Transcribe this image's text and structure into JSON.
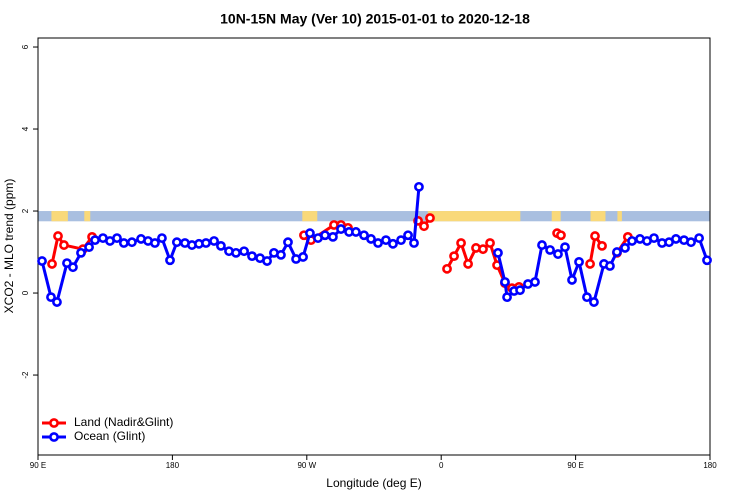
{
  "chart_data": {
    "type": "line",
    "title": "10N-15N May (Ver 10)   2015-01-01 to 2020-12-18",
    "xlabel": "Longitude (deg E)",
    "ylabel": "XCO2 - MLO trend (ppm)",
    "xlim": [
      90,
      540
    ],
    "ylim": [
      -3.95,
      6.22
    ],
    "xticks": [
      {
        "value": 90,
        "label": "90 E"
      },
      {
        "value": 180,
        "label": "180"
      },
      {
        "value": 270,
        "label": "90 W"
      },
      {
        "value": 360,
        "label": "0"
      },
      {
        "value": 450,
        "label": "90 E"
      },
      {
        "value": 540,
        "label": "180"
      }
    ],
    "yticks": [
      -2,
      0,
      2,
      4,
      6
    ],
    "mask_band": {
      "ylim": [
        1.75,
        2.0
      ],
      "color": "#a9bfe0",
      "land_color": "#f9d97a",
      "land": [
        [
          99,
          110
        ],
        [
          121,
          125
        ],
        [
          267,
          277
        ],
        [
          351,
          413
        ],
        [
          434,
          440
        ],
        [
          460,
          470
        ],
        [
          478,
          481
        ]
      ]
    },
    "legend": "bottom-left",
    "series": [
      {
        "name": "Land (Nadir&Glint)",
        "color": "#ff0000",
        "x": [
          99.4,
          103.4,
          107.4,
          120.1,
          126.2,
          200,
          268.1,
          272.8,
          288.2,
          292.9,
          297.6,
          320,
          344.5,
          348.5,
          352.5,
          358,
          363.9,
          368.6,
          373.3,
          378,
          383.3,
          388,
          392.7,
          397.4,
          402.7,
          407.4,
          412.1,
          425,
          437.6,
          440.2,
          450,
          459.7,
          463,
          467.7,
          472,
          477.7,
          485
        ],
        "values": [
          0.71,
          1.39,
          1.17,
          1.07,
          1.37,
          null,
          1.41,
          1.29,
          1.66,
          1.66,
          1.59,
          null,
          1.76,
          1.63,
          1.83,
          null,
          0.59,
          0.9,
          1.22,
          0.71,
          1.1,
          1.07,
          1.22,
          0.68,
          0.24,
          0.12,
          0.15,
          null,
          1.46,
          1.41,
          null,
          0.71,
          1.39,
          1.15,
          null,
          0.98,
          1.37
        ]
      },
      {
        "name": "Ocean (Glint)",
        "color": "#0000ff",
        "x": [
          92.7,
          98.7,
          102.7,
          109.4,
          113.4,
          118.8,
          124.2,
          128.2,
          133.5,
          138.2,
          142.9,
          147.5,
          152.9,
          159,
          163.7,
          168.3,
          173,
          178.4,
          183,
          188.4,
          193.1,
          197.8,
          202.5,
          207.9,
          212.5,
          217.9,
          222.6,
          228,
          233.3,
          238.7,
          243.4,
          248,
          252.7,
          257.4,
          262.8,
          267.5,
          272.1,
          277.5,
          282.2,
          287.5,
          292.9,
          298.3,
          302.9,
          308.3,
          313,
          317.7,
          323,
          327.7,
          333.1,
          337.8,
          341.8,
          345.1,
          380,
          398,
          402.7,
          404.1,
          408.8,
          412.8,
          418.1,
          422.8,
          427.5,
          432.9,
          438.2,
          442.9,
          447.6,
          452.3,
          457.6,
          462.3,
          469,
          473,
          477.7,
          483.1,
          487.8,
          493.1,
          497.8,
          502.5,
          507.9,
          512.6,
          517.2,
          522.6,
          527.3,
          532.7,
          538
        ],
        "values": [
          0.78,
          -0.1,
          -0.22,
          0.73,
          0.63,
          0.98,
          1.12,
          1.29,
          1.34,
          1.27,
          1.34,
          1.22,
          1.24,
          1.32,
          1.27,
          1.22,
          1.34,
          0.8,
          1.24,
          1.22,
          1.17,
          1.2,
          1.22,
          1.27,
          1.15,
          1.02,
          0.98,
          1.02,
          0.9,
          0.85,
          0.78,
          0.98,
          0.93,
          1.24,
          0.83,
          0.88,
          1.46,
          1.34,
          1.41,
          1.37,
          1.56,
          1.49,
          1.49,
          1.41,
          1.32,
          1.22,
          1.29,
          1.2,
          1.29,
          1.41,
          1.22,
          2.59,
          null,
          0.98,
          0.27,
          -0.1,
          0.05,
          0.07,
          0.22,
          0.27,
          1.17,
          1.05,
          0.95,
          1.12,
          0.32,
          0.76,
          -0.1,
          -0.22,
          0.71,
          0.66,
          1.0,
          1.1,
          1.27,
          1.32,
          1.27,
          1.34,
          1.22,
          1.24,
          1.32,
          1.29,
          1.24,
          1.34,
          0.8
        ]
      }
    ]
  }
}
